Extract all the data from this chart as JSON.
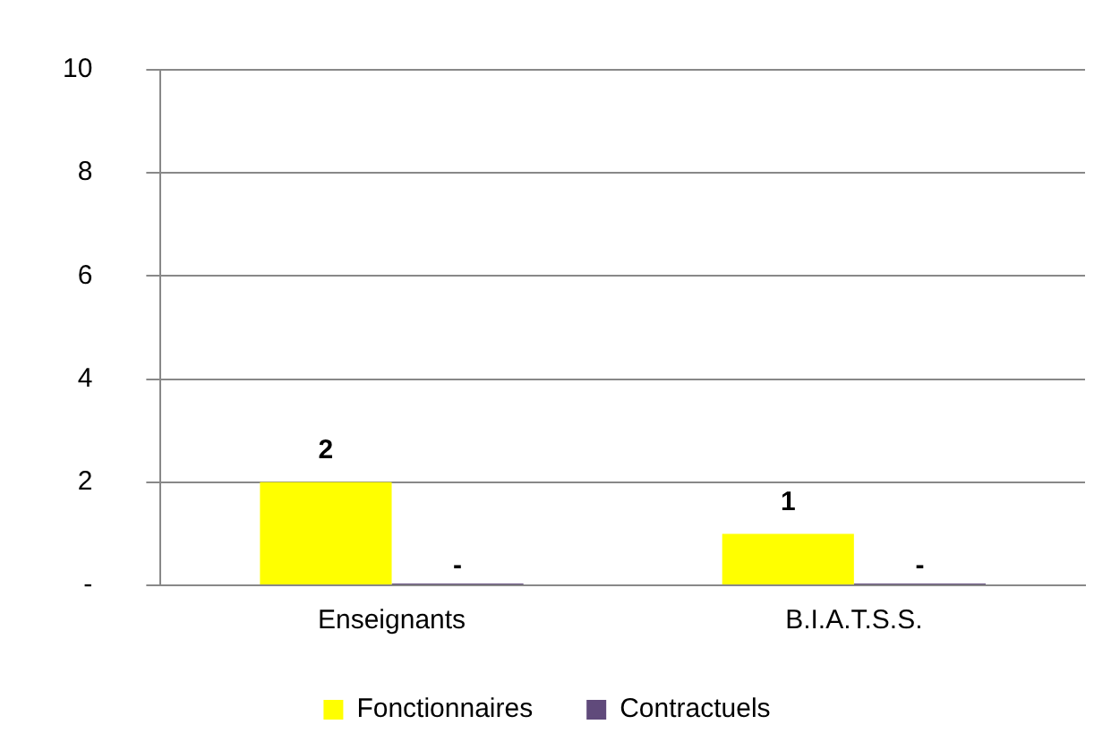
{
  "chart_data": {
    "type": "bar",
    "categories": [
      "Enseignants",
      "B.I.A.T.S.S."
    ],
    "series": [
      {
        "name": "Fonctionnaires",
        "color": "#ffff00",
        "values": [
          2,
          1
        ],
        "value_labels": [
          "2",
          "1"
        ]
      },
      {
        "name": "Contractuels",
        "color": "#604a7b",
        "values": [
          0,
          0
        ],
        "value_labels": [
          "-",
          "-"
        ]
      }
    ],
    "ylim": [
      0,
      10
    ],
    "yticks": [
      {
        "value": 0,
        "label": "-"
      },
      2,
      4,
      6,
      8,
      10
    ],
    "grid": "y",
    "legend": "bottom"
  }
}
